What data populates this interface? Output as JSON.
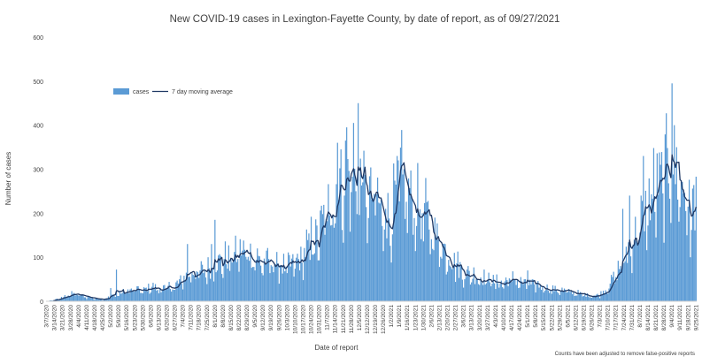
{
  "chart_data": {
    "type": "bar",
    "title": "New COVID-19 cases in Lexington-Fayette County, by date of report, as of 09/27/2021",
    "xlabel": "Date of report",
    "ylabel": "Number of cases",
    "footnote": "Counts have been adjusted to remove false-positive reports",
    "ylim": [
      0,
      600
    ],
    "yticks": [
      0,
      100,
      200,
      300,
      400,
      500,
      600
    ],
    "grid": false,
    "legend_position": "top-left",
    "colors": {
      "bars": "#5b9bd5",
      "line": "#1f3864"
    },
    "date_range": [
      "2020-03-07",
      "2021-09-25"
    ],
    "x_tick_labels": [
      "3/7/2020",
      "3/14/2020",
      "3/21/2020",
      "3/28/2020",
      "4/4/2020",
      "4/11/2020",
      "4/18/2020",
      "4/25/2020",
      "5/2/2020",
      "5/9/2020",
      "5/16/2020",
      "5/23/2020",
      "5/30/2020",
      "6/6/2020",
      "6/13/2020",
      "6/20/2020",
      "6/27/2020",
      "7/4/2020",
      "7/11/2020",
      "7/18/2020",
      "7/25/2020",
      "8/1/2020",
      "8/8/2020",
      "8/15/2020",
      "8/22/2020",
      "8/29/2020",
      "9/5/2020",
      "9/12/2020",
      "9/19/2020",
      "9/26/2020",
      "10/3/2020",
      "10/10/2020",
      "10/17/2020",
      "10/24/2020",
      "10/31/2020",
      "11/7/2020",
      "11/14/2020",
      "11/21/2020",
      "11/28/2020",
      "12/5/2020",
      "12/12/2020",
      "12/19/2020",
      "12/26/2020",
      "1/2/2021",
      "1/9/2021",
      "1/16/2021",
      "1/23/2021",
      "1/30/2021",
      "2/6/2021",
      "2/13/2021",
      "2/20/2021",
      "2/27/2021",
      "3/6/2021",
      "3/13/2021",
      "3/20/2021",
      "3/27/2021",
      "4/3/2021",
      "4/10/2021",
      "4/17/2021",
      "4/24/2021",
      "5/1/2021",
      "5/8/2021",
      "5/15/2021",
      "5/22/2021",
      "5/29/2021",
      "6/5/2021",
      "6/12/2021",
      "6/19/2021",
      "6/26/2021",
      "7/3/2021",
      "7/10/2021",
      "7/17/2021",
      "7/24/2021",
      "7/31/2021",
      "8/7/2021",
      "8/14/2021",
      "8/21/2021",
      "8/28/2021",
      "9/4/2021",
      "9/11/2021",
      "9/18/2021",
      "9/25/2021"
    ],
    "series": [
      {
        "name": "cases",
        "type": "bar",
        "weekly_anchor_values": [
          0,
          3,
          8,
          16,
          14,
          10,
          6,
          5,
          10,
          16,
          22,
          26,
          22,
          32,
          26,
          30,
          32,
          48,
          64,
          62,
          70,
          80,
          88,
          98,
          104,
          112,
          96,
          82,
          86,
          80,
          74,
          82,
          96,
          118,
          142,
          198,
          240,
          262,
          272,
          252,
          216,
          232,
          178,
          180,
          262,
          230,
          208,
          190,
          162,
          124,
          106,
          82,
          62,
          58,
          52,
          50,
          42,
          40,
          50,
          42,
          34,
          36,
          32,
          26,
          24,
          22,
          18,
          14,
          12,
          14,
          32,
          58,
          90,
          128,
          172,
          206,
          240,
          266,
          298,
          262,
          220,
          198
        ],
        "spikes": [
          {
            "date": "2020-05-02",
            "value": 30
          },
          {
            "date": "2020-05-07",
            "value": 72
          },
          {
            "date": "2020-07-08",
            "value": 130
          },
          {
            "date": "2020-07-29",
            "value": 130
          },
          {
            "date": "2020-08-01",
            "value": 185
          },
          {
            "date": "2020-10-20",
            "value": 163
          },
          {
            "date": "2020-10-24",
            "value": 192
          },
          {
            "date": "2020-11-16",
            "value": 360
          },
          {
            "date": "2020-11-24",
            "value": 395
          },
          {
            "date": "2020-11-30",
            "value": 405
          },
          {
            "date": "2020-12-04",
            "value": 450
          },
          {
            "date": "2020-12-08",
            "value": 270
          },
          {
            "date": "2020-12-28",
            "value": 210
          },
          {
            "date": "2021-01-07",
            "value": 330
          },
          {
            "date": "2021-01-08",
            "value": 320
          },
          {
            "date": "2021-02-12",
            "value": 140
          },
          {
            "date": "2021-02-26",
            "value": 110
          },
          {
            "date": "2021-05-01",
            "value": 70
          },
          {
            "date": "2021-07-23",
            "value": 210
          },
          {
            "date": "2021-07-29",
            "value": 240
          },
          {
            "date": "2021-08-10",
            "value": 330
          },
          {
            "date": "2021-08-19",
            "value": 348
          },
          {
            "date": "2021-08-25",
            "value": 310
          },
          {
            "date": "2021-09-04",
            "value": 495
          },
          {
            "date": "2021-09-06",
            "value": 400
          },
          {
            "date": "2021-09-12",
            "value": 275
          },
          {
            "date": "2021-09-20",
            "value": 100
          },
          {
            "date": "2021-09-25",
            "value": 283
          }
        ]
      },
      {
        "name": "7 day moving average",
        "type": "line"
      }
    ]
  }
}
